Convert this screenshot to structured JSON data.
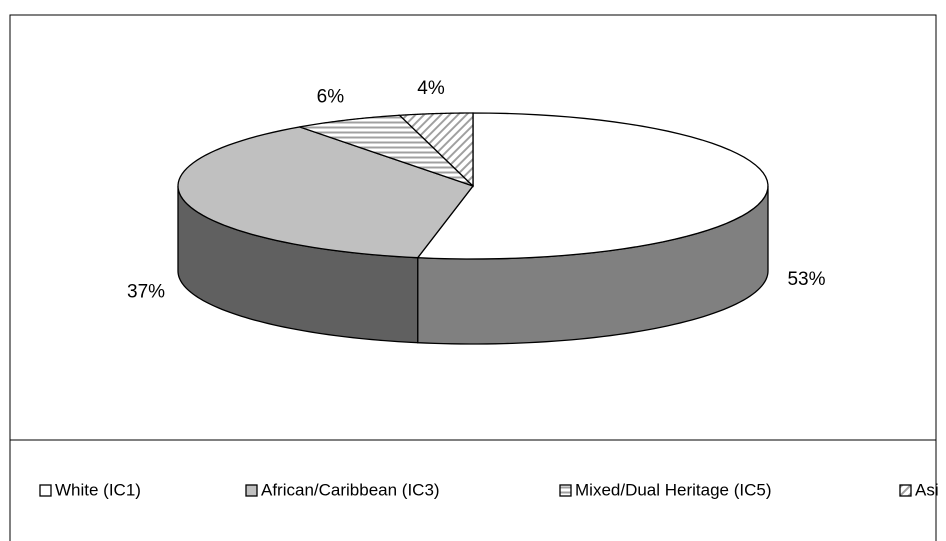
{
  "chart_data": {
    "type": "pie3d",
    "categories": [
      "White (IC1)",
      "African/Caribbean (IC3)",
      "Mixed/Dual Heritage (IC5)",
      "Asi"
    ],
    "values": [
      53,
      37,
      6,
      4
    ],
    "value_labels": [
      "53%",
      "37%",
      "6%",
      "4%"
    ],
    "colors": [
      "#ffffff",
      "#c0c0c0",
      "#c0c0c0",
      "#c0c0c0"
    ],
    "patterns": [
      "solid",
      "solid",
      "horizontal",
      "diagonal"
    ],
    "legend": "bottom"
  }
}
